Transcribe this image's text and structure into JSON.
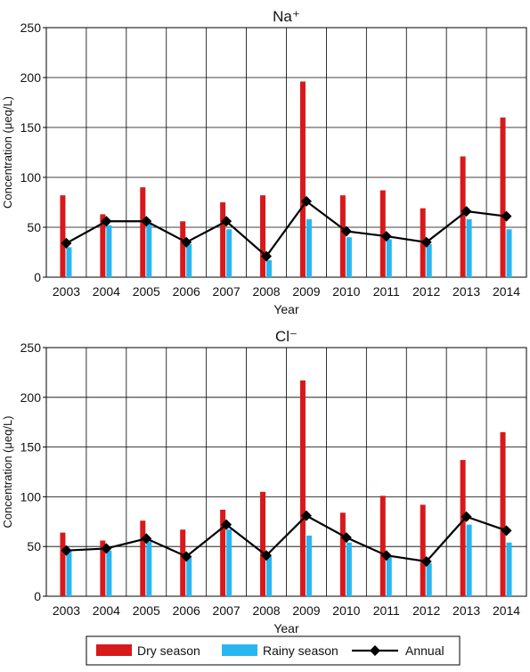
{
  "chart_data": [
    {
      "type": "bar",
      "title": "Na⁺",
      "xlabel": "Year",
      "ylabel": "Concentration (μeq/L)",
      "ylim": [
        0,
        250
      ],
      "yticks": [
        0,
        50,
        100,
        150,
        200,
        250
      ],
      "grid": true,
      "categories": [
        "2003",
        "2004",
        "2005",
        "2006",
        "2007",
        "2008",
        "2009",
        "2010",
        "2011",
        "2012",
        "2013",
        "2014"
      ],
      "series": [
        {
          "name": "Dry season",
          "type": "bar",
          "color": "#d7191c",
          "values": [
            82,
            63,
            90,
            56,
            75,
            82,
            196,
            82,
            87,
            69,
            121,
            160
          ]
        },
        {
          "name": "Rainy season",
          "type": "bar",
          "color": "#29b6f0",
          "values": [
            30,
            52,
            54,
            33,
            48,
            17,
            58,
            40,
            38,
            33,
            58,
            48
          ]
        },
        {
          "name": "Annual",
          "type": "line",
          "color": "#000000",
          "values": [
            34,
            56,
            56,
            35,
            56,
            21,
            76,
            46,
            41,
            35,
            66,
            61
          ]
        }
      ]
    },
    {
      "type": "bar",
      "title": "Cl⁻",
      "xlabel": "Year",
      "ylabel": "Concentration (μeq/L)",
      "ylim": [
        0,
        250
      ],
      "yticks": [
        0,
        50,
        100,
        150,
        200,
        250
      ],
      "grid": true,
      "categories": [
        "2003",
        "2004",
        "2005",
        "2006",
        "2007",
        "2008",
        "2009",
        "2010",
        "2011",
        "2012",
        "2013",
        "2014"
      ],
      "series": [
        {
          "name": "Dry season",
          "type": "bar",
          "color": "#d7191c",
          "values": [
            64,
            56,
            76,
            67,
            87,
            105,
            217,
            84,
            101,
            92,
            137,
            165
          ]
        },
        {
          "name": "Rainy season",
          "type": "bar",
          "color": "#29b6f0",
          "values": [
            46,
            46,
            55,
            40,
            67,
            40,
            61,
            54,
            40,
            33,
            72,
            54
          ]
        },
        {
          "name": "Annual",
          "type": "line",
          "color": "#000000",
          "values": [
            46,
            48,
            58,
            40,
            72,
            41,
            81,
            59,
            41,
            35,
            80,
            66
          ]
        }
      ]
    }
  ],
  "legend": {
    "placement": "bottom",
    "items": [
      {
        "label": "Dry season",
        "kind": "bar",
        "color": "#d7191c"
      },
      {
        "label": "Rainy season",
        "kind": "bar",
        "color": "#29b6f0"
      },
      {
        "label": "Annual",
        "kind": "line",
        "color": "#000000"
      }
    ]
  }
}
